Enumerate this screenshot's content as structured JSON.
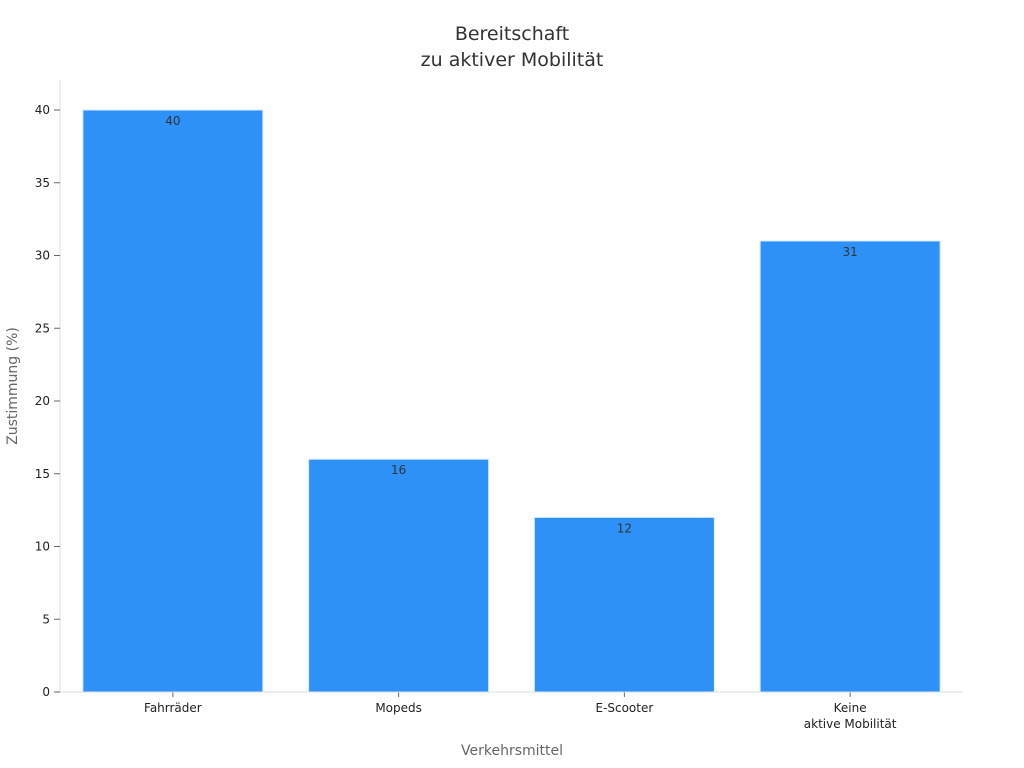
{
  "chart_data": {
    "type": "bar",
    "title": [
      "Bereitschaft",
      "zu aktiver Mobilität"
    ],
    "xlabel": "Verkehrsmittel",
    "ylabel": "Zustimmung (%)",
    "categories": [
      [
        "Fahrräder"
      ],
      [
        "Mopeds"
      ],
      [
        "E-Scooter"
      ],
      [
        "Keine",
        "aktive Mobilität"
      ]
    ],
    "values": [
      40,
      16,
      12,
      31
    ],
    "data_labels": [
      "40",
      "16",
      "12",
      "31"
    ],
    "ylim": [
      0,
      42
    ],
    "yticks": [
      0,
      5,
      10,
      15,
      20,
      25,
      30,
      35,
      40
    ],
    "ytick_labels": [
      "0",
      "5",
      "10",
      "15",
      "20",
      "25",
      "30",
      "35",
      "40"
    ],
    "bar_color": "#2e91f8",
    "grid": false,
    "legend": "none"
  }
}
